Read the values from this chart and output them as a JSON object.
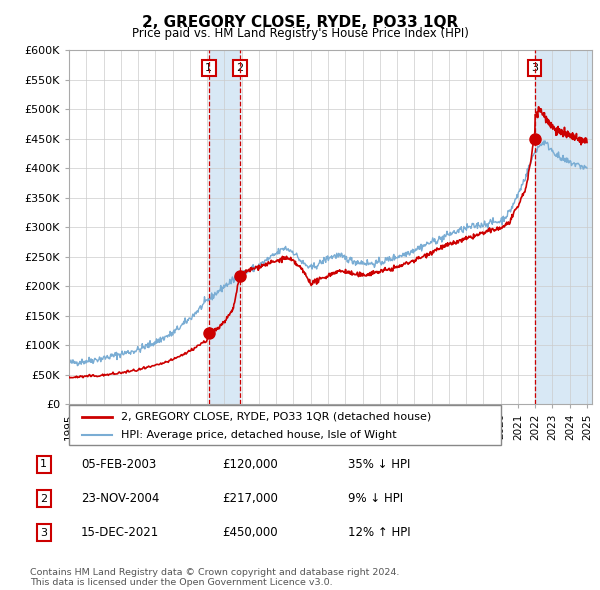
{
  "title": "2, GREGORY CLOSE, RYDE, PO33 1QR",
  "subtitle": "Price paid vs. HM Land Registry's House Price Index (HPI)",
  "ylabel_ticks": [
    "£0",
    "£50K",
    "£100K",
    "£150K",
    "£200K",
    "£250K",
    "£300K",
    "£350K",
    "£400K",
    "£450K",
    "£500K",
    "£550K",
    "£600K"
  ],
  "ytick_values": [
    0,
    50000,
    100000,
    150000,
    200000,
    250000,
    300000,
    350000,
    400000,
    450000,
    500000,
    550000,
    600000
  ],
  "ylim": [
    0,
    600000
  ],
  "xlim_start": 1995.0,
  "xlim_end": 2025.3,
  "hpi_anchors": [
    [
      1995.0,
      70000
    ],
    [
      1995.5,
      71000
    ],
    [
      1996.0,
      73000
    ],
    [
      1997.0,
      78000
    ],
    [
      1998.0,
      85000
    ],
    [
      1999.0,
      92000
    ],
    [
      2000.0,
      105000
    ],
    [
      2001.0,
      120000
    ],
    [
      2002.0,
      145000
    ],
    [
      2003.0,
      175000
    ],
    [
      2004.0,
      200000
    ],
    [
      2004.5,
      210000
    ],
    [
      2005.0,
      220000
    ],
    [
      2006.0,
      235000
    ],
    [
      2007.0,
      255000
    ],
    [
      2007.5,
      265000
    ],
    [
      2008.0,
      258000
    ],
    [
      2008.5,
      240000
    ],
    [
      2009.0,
      230000
    ],
    [
      2009.5,
      238000
    ],
    [
      2010.0,
      248000
    ],
    [
      2010.5,
      252000
    ],
    [
      2011.0,
      248000
    ],
    [
      2011.5,
      242000
    ],
    [
      2012.0,
      240000
    ],
    [
      2012.5,
      238000
    ],
    [
      2013.0,
      240000
    ],
    [
      2013.5,
      245000
    ],
    [
      2014.0,
      250000
    ],
    [
      2014.5,
      255000
    ],
    [
      2015.0,
      262000
    ],
    [
      2015.5,
      268000
    ],
    [
      2016.0,
      275000
    ],
    [
      2016.5,
      280000
    ],
    [
      2017.0,
      288000
    ],
    [
      2017.5,
      293000
    ],
    [
      2018.0,
      298000
    ],
    [
      2018.5,
      302000
    ],
    [
      2019.0,
      305000
    ],
    [
      2019.5,
      308000
    ],
    [
      2020.0,
      310000
    ],
    [
      2020.5,
      325000
    ],
    [
      2021.0,
      355000
    ],
    [
      2021.5,
      390000
    ],
    [
      2022.0,
      430000
    ],
    [
      2022.5,
      445000
    ],
    [
      2023.0,
      430000
    ],
    [
      2023.5,
      415000
    ],
    [
      2024.0,
      410000
    ],
    [
      2024.5,
      405000
    ],
    [
      2025.0,
      400000
    ]
  ],
  "red_anchors_seg1": [
    [
      1995.0,
      45000
    ],
    [
      1995.5,
      46000
    ],
    [
      1996.0,
      47000
    ],
    [
      1997.0,
      49000
    ],
    [
      1998.0,
      53000
    ],
    [
      1999.0,
      58000
    ],
    [
      2000.0,
      65000
    ],
    [
      2001.0,
      75000
    ],
    [
      2002.0,
      90000
    ],
    [
      2002.5,
      100000
    ],
    [
      2003.0,
      108000
    ],
    [
      2003.08,
      120000
    ]
  ],
  "red_anchors_seg2": [
    [
      2003.09,
      120000
    ],
    [
      2003.2,
      122000
    ],
    [
      2003.5,
      126000
    ],
    [
      2004.0,
      140000
    ],
    [
      2004.5,
      160000
    ],
    [
      2004.89,
      217000
    ]
  ],
  "red_anchors_seg3": [
    [
      2004.9,
      217000
    ],
    [
      2005.0,
      220000
    ],
    [
      2005.5,
      228000
    ],
    [
      2006.0,
      233000
    ],
    [
      2006.5,
      238000
    ],
    [
      2007.0,
      242000
    ],
    [
      2007.5,
      248000
    ],
    [
      2008.0,
      242000
    ],
    [
      2008.5,
      228000
    ],
    [
      2009.0,
      205000
    ],
    [
      2009.5,
      210000
    ],
    [
      2010.0,
      218000
    ],
    [
      2010.5,
      225000
    ],
    [
      2011.0,
      225000
    ],
    [
      2011.5,
      220000
    ],
    [
      2012.0,
      218000
    ],
    [
      2012.5,
      222000
    ],
    [
      2013.0,
      225000
    ],
    [
      2013.5,
      228000
    ],
    [
      2014.0,
      232000
    ],
    [
      2014.5,
      238000
    ],
    [
      2015.0,
      244000
    ],
    [
      2015.5,
      250000
    ],
    [
      2016.0,
      258000
    ],
    [
      2016.5,
      265000
    ],
    [
      2017.0,
      270000
    ],
    [
      2017.5,
      275000
    ],
    [
      2018.0,
      280000
    ],
    [
      2018.5,
      285000
    ],
    [
      2019.0,
      290000
    ],
    [
      2019.5,
      295000
    ],
    [
      2020.0,
      298000
    ],
    [
      2020.5,
      308000
    ],
    [
      2021.0,
      335000
    ],
    [
      2021.5,
      370000
    ],
    [
      2021.95,
      450000
    ]
  ],
  "red_anchors_seg4": [
    [
      2021.96,
      450000
    ],
    [
      2022.0,
      490000
    ],
    [
      2022.25,
      500000
    ],
    [
      2022.5,
      490000
    ],
    [
      2022.75,
      480000
    ],
    [
      2023.0,
      470000
    ],
    [
      2023.5,
      460000
    ],
    [
      2024.0,
      455000
    ],
    [
      2024.5,
      448000
    ],
    [
      2025.0,
      445000
    ]
  ],
  "sales": [
    {
      "date_num": 2003.09,
      "price": 120000,
      "label": "1"
    },
    {
      "date_num": 2004.9,
      "price": 217000,
      "label": "2"
    },
    {
      "date_num": 2021.96,
      "price": 450000,
      "label": "3"
    }
  ],
  "legend_line1_color": "#cc0000",
  "legend_line2_color": "#7aadd4",
  "shade_color": "#d8e8f5",
  "vline_color": "#cc0000",
  "footer_text": "Contains HM Land Registry data © Crown copyright and database right 2024.\nThis data is licensed under the Open Government Licence v3.0.",
  "table_rows": [
    {
      "num": "1",
      "date": "05-FEB-2003",
      "price": "£120,000",
      "hpi": "35% ↓ HPI"
    },
    {
      "num": "2",
      "date": "23-NOV-2004",
      "price": "£217,000",
      "hpi": "9% ↓ HPI"
    },
    {
      "num": "3",
      "date": "15-DEC-2021",
      "price": "£450,000",
      "hpi": "12% ↑ HPI"
    }
  ],
  "background_color": "#ffffff",
  "plot_bg_color": "#ffffff",
  "grid_color": "#cccccc"
}
